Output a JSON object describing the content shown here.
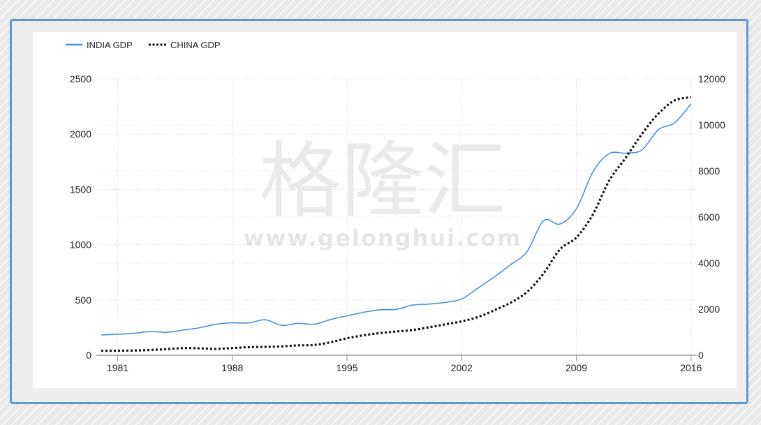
{
  "watermark": {
    "brand": "格隆汇",
    "url": "www.gelonghui.com"
  },
  "chart_data": {
    "type": "line",
    "title": "",
    "xlabel": "",
    "ylabel": "",
    "y2label": "",
    "legend_position": "top-left",
    "grid": true,
    "xlim": [
      1980,
      2016
    ],
    "ylim": [
      0,
      2500
    ],
    "y2lim": [
      0,
      12000
    ],
    "x_ticks": [
      "1981",
      "1988",
      "1995",
      "2002",
      "2009",
      "2016"
    ],
    "y_ticks": [
      "0",
      "500",
      "1000",
      "1500",
      "2000",
      "2500"
    ],
    "y2_ticks": [
      "0",
      "2000",
      "4000",
      "6000",
      "8000",
      "10000",
      "12000"
    ],
    "x": [
      1980,
      1981,
      1982,
      1983,
      1984,
      1985,
      1986,
      1987,
      1988,
      1989,
      1990,
      1991,
      1992,
      1993,
      1994,
      1995,
      1996,
      1997,
      1998,
      1999,
      2000,
      2001,
      2002,
      2003,
      2004,
      2005,
      2006,
      2007,
      2008,
      2009,
      2010,
      2011,
      2012,
      2013,
      2014,
      2015,
      2016
    ],
    "series": [
      {
        "name": "INDIA GDP",
        "axis": "left",
        "color": "#4a90d9",
        "style": "solid",
        "values": [
          183,
          190,
          198,
          215,
          207,
          227,
          248,
          280,
          293,
          292,
          321,
          270,
          288,
          280,
          323,
          356,
          388,
          411,
          415,
          453,
          463,
          478,
          509,
          608,
          709,
          820,
          940,
          1217,
          1187,
          1324,
          1656,
          1823,
          1828,
          1857,
          2039,
          2103,
          2274
        ]
      },
      {
        "name": "CHINA GDP",
        "axis": "right",
        "color": "#111111",
        "style": "dotted",
        "values": [
          191,
          195,
          203,
          229,
          260,
          310,
          300,
          273,
          312,
          348,
          361,
          383,
          427,
          445,
          565,
          735,
          863,
          962,
          1029,
          1094,
          1211,
          1339,
          1471,
          1660,
          1955,
          2286,
          2752,
          3552,
          4598,
          5110,
          6101,
          7573,
          8560,
          9607,
          10482,
          11065,
          11199
        ]
      }
    ]
  }
}
